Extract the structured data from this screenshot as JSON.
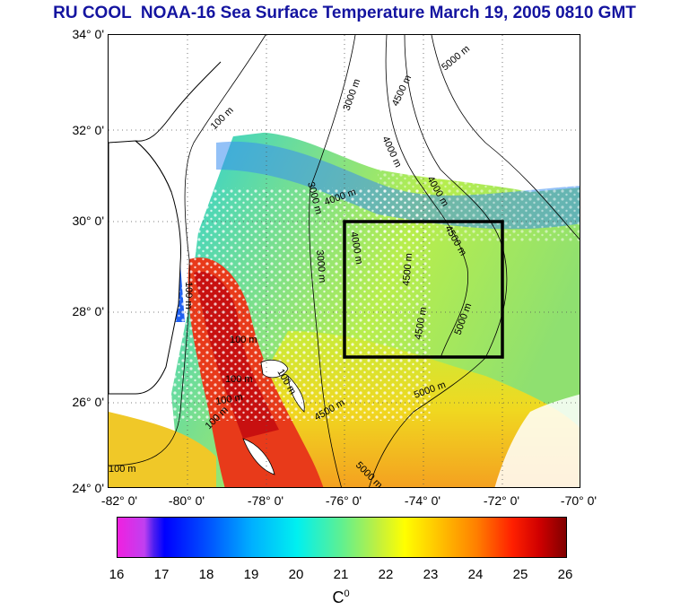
{
  "title": "RU COOL  NOAA-16 Sea Surface Temperature March 19, 2005 0810 GMT",
  "lat_labels": [
    "34° 0'",
    "32° 0'",
    "30° 0'",
    "28° 0'",
    "26° 0'",
    "24° 0'"
  ],
  "lon_labels": [
    "-82° 0'",
    "-80° 0'",
    "-78° 0'",
    "-76° 0'",
    "-74° 0'",
    "-72° 0'",
    "-70° 0'"
  ],
  "contour_labels": [
    "3000 m",
    "4500 m",
    "5000 m",
    "4000 m",
    "100 m",
    "3000 m",
    "4000 m",
    "4000 m",
    "4500 m",
    "4000 m",
    "4500 m",
    "100 m",
    "3000 m",
    "100 m",
    "100 m",
    "100 m",
    "100 m",
    "100 m",
    "100 m",
    "4500 m",
    "4500 m",
    "5000 m",
    "5000 m",
    "5000 m"
  ],
  "colorbar": {
    "ticks": [
      "16",
      "17",
      "18",
      "19",
      "20",
      "21",
      "22",
      "23",
      "24",
      "25",
      "26"
    ],
    "unit": "C",
    "unit_sup": "0",
    "min": 16,
    "max": 26
  },
  "study_box": {
    "lon": [
      -76,
      -72
    ],
    "lat": [
      27,
      30
    ]
  },
  "colors": {
    "title": "#1414a0",
    "land": "#ffffff",
    "box": "#000000"
  }
}
